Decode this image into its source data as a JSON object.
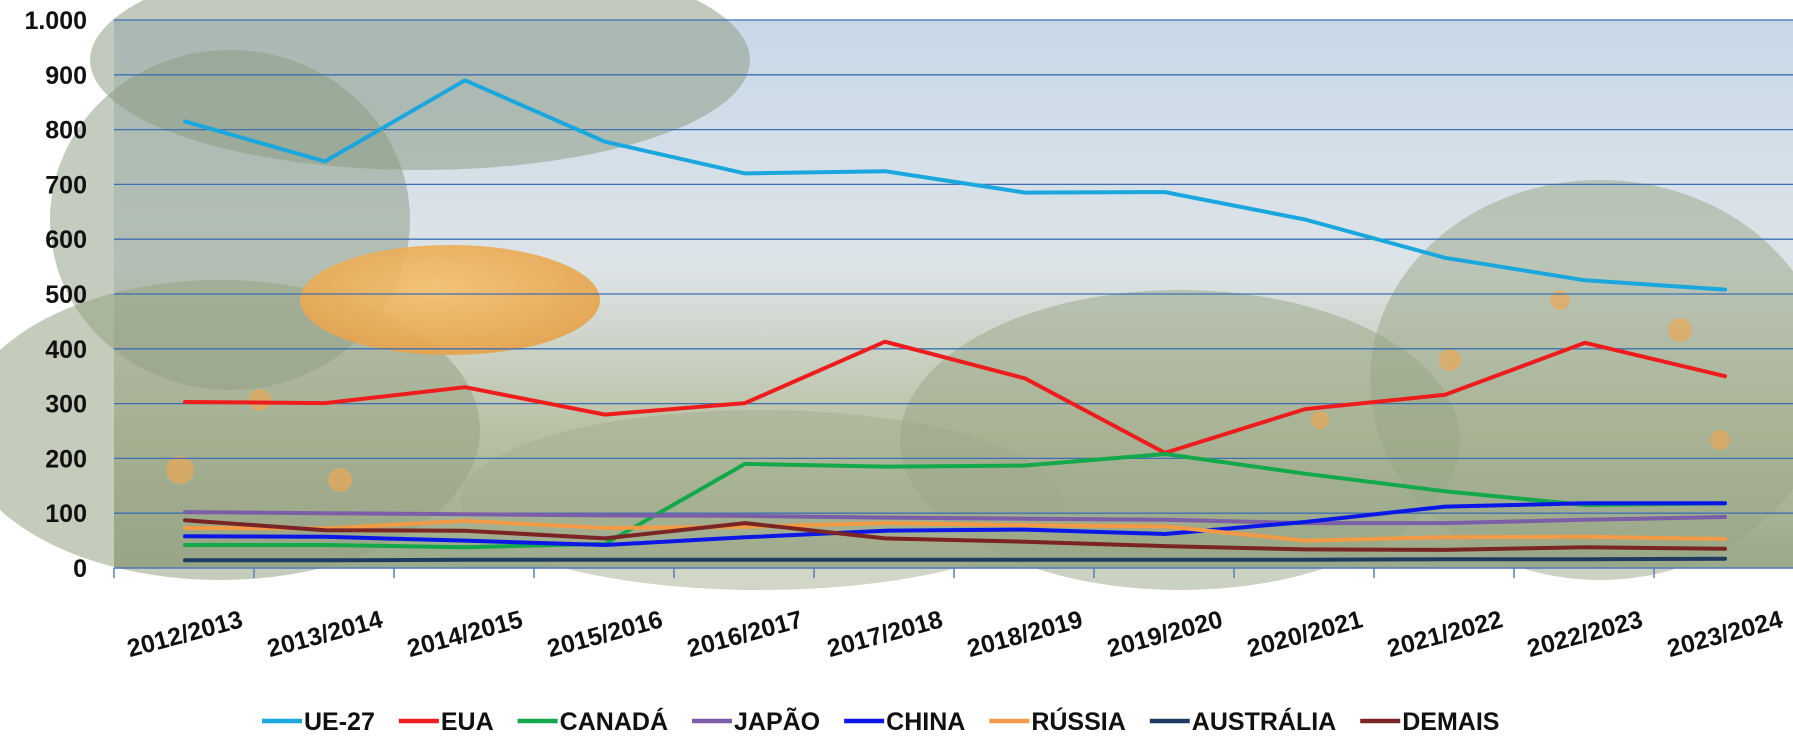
{
  "chart_data": {
    "type": "line",
    "title": "",
    "xlabel": "",
    "ylabel": "",
    "ylim": [
      0,
      1000
    ],
    "yticks": [
      0,
      100,
      200,
      300,
      400,
      500,
      600,
      700,
      800,
      900,
      1000
    ],
    "ytick_labels": [
      "0",
      "100",
      "200",
      "300",
      "400",
      "500",
      "600",
      "700",
      "800",
      "900",
      "1.000"
    ],
    "grid": true,
    "legend_position": "bottom",
    "background": "photo of orange orchard with sky (faded)",
    "categories": [
      "2012/2013",
      "2013/2014",
      "2014/2015",
      "2015/2016",
      "2016/2017",
      "2017/2018",
      "2018/2019",
      "2019/2020",
      "2020/2021",
      "2021/2022",
      "2022/2023",
      "2023/2024"
    ],
    "series": [
      {
        "name": "UE-27",
        "color": "#1aa7dd",
        "values": [
          815,
          742,
          890,
          778,
          720,
          724,
          685,
          686,
          636,
          566,
          525,
          508
        ]
      },
      {
        "name": "EUA",
        "color": "#ee1c1c",
        "values": [
          303,
          301,
          330,
          280,
          301,
          413,
          346,
          210,
          290,
          316,
          411,
          350
        ]
      },
      {
        "name": "CANADÁ",
        "color": "#13a84a",
        "values": [
          42,
          42,
          38,
          44,
          190,
          185,
          187,
          208,
          172,
          140,
          115,
          118
        ]
      },
      {
        "name": "JAPÃO",
        "color": "#7b5ea7",
        "values": [
          102,
          100,
          98,
          96,
          95,
          92,
          90,
          88,
          82,
          82,
          88,
          93
        ]
      },
      {
        "name": "CHINA",
        "color": "#0a17e6",
        "values": [
          58,
          57,
          50,
          42,
          56,
          68,
          70,
          62,
          84,
          112,
          118,
          118
        ]
      },
      {
        "name": "RÚSSIA",
        "color": "#f39a46",
        "values": [
          73,
          72,
          86,
          73,
          75,
          82,
          78,
          76,
          50,
          56,
          57,
          53
        ]
      },
      {
        "name": "AUSTRÁLIA",
        "color": "#1f3b60",
        "values": [
          14,
          14,
          15,
          15,
          15,
          15,
          15,
          15,
          15,
          16,
          16,
          17
        ]
      },
      {
        "name": "DEMAIS",
        "color": "#7a2424",
        "values": [
          87,
          69,
          68,
          54,
          82,
          54,
          48,
          40,
          34,
          33,
          38,
          35
        ]
      }
    ]
  }
}
